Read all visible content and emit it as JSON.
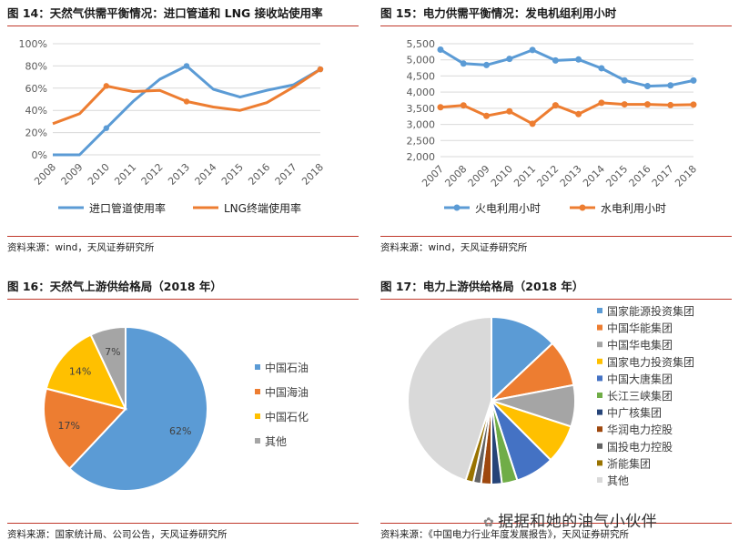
{
  "panels": {
    "fig14": {
      "title": "图 14：天然气供需平衡情况：进口管道和 LNG 接收站使用率",
      "source": "资料来源：wind，天风证券研究所"
    },
    "fig15": {
      "title": "图 15：电力供需平衡情况：发电机组利用小时",
      "source": "资料来源：wind，天风证券研究所"
    },
    "fig16": {
      "title": "图 16：天然气上游供给格局（2018 年）",
      "source": "资料来源：国家统计局、公司公告，天风证券研究所"
    },
    "fig17": {
      "title": "图 17：电力上游供给格局（2018 年）",
      "source": "资料来源：《中国电力行业年度发展报告》，天风证券研究所"
    }
  },
  "watermark": {
    "text": "据据和她的油气小伙伴",
    "icon": "wechat-icon"
  },
  "chart_data": [
    {
      "id": "fig14",
      "type": "line",
      "x": [
        "2008",
        "2009",
        "2010",
        "2011",
        "2012",
        "2013",
        "2014",
        "2015",
        "2016",
        "2017",
        "2018"
      ],
      "yticks": [
        "0%",
        "20%",
        "40%",
        "60%",
        "80%",
        "100%"
      ],
      "ylim": [
        0,
        100
      ],
      "series": [
        {
          "name": "进口管道使用率",
          "color": "#5b9bd5",
          "values": [
            0,
            0,
            24,
            48,
            68,
            80,
            59,
            52,
            58,
            63,
            77
          ]
        },
        {
          "name": "LNG终端使用率",
          "color": "#ed7d31",
          "values": [
            28,
            37,
            62,
            57,
            58,
            48,
            43,
            40,
            47,
            61,
            77
          ]
        }
      ],
      "grid": true
    },
    {
      "id": "fig15",
      "type": "line",
      "x": [
        "2007",
        "2008",
        "2009",
        "2010",
        "2011",
        "2012",
        "2013",
        "2014",
        "2015",
        "2016",
        "2017",
        "2018"
      ],
      "yticks": [
        "2,000",
        "2,500",
        "3,000",
        "3,500",
        "4,000",
        "4,500",
        "5,000",
        "5,500"
      ],
      "ylim": [
        2000,
        5500
      ],
      "series": [
        {
          "name": "火电利用小时",
          "color": "#5b9bd5",
          "values": [
            5316,
            4885,
            4839,
            5031,
            5305,
            4982,
            5012,
            4739,
            4364,
            4186,
            4209,
            4361
          ]
        },
        {
          "name": "水电利用小时",
          "color": "#ed7d31",
          "values": [
            3532,
            3589,
            3264,
            3404,
            3019,
            3591,
            3318,
            3669,
            3621,
            3619,
            3597,
            3613
          ]
        }
      ],
      "grid": true
    },
    {
      "id": "fig16",
      "type": "pie",
      "slices": [
        {
          "name": "中国石油",
          "value": 62,
          "label": "62%",
          "color": "#5b9bd5"
        },
        {
          "name": "中国海油",
          "value": 17,
          "label": "17%",
          "color": "#ed7d31"
        },
        {
          "name": "中国石化",
          "value": 14,
          "label": "14%",
          "color": "#ffc000"
        },
        {
          "name": "其他",
          "value": 7,
          "label": "7%",
          "color": "#a5a5a5"
        }
      ]
    },
    {
      "id": "fig17",
      "type": "pie",
      "slices": [
        {
          "name": "国家能源投资集团",
          "value": 13,
          "color": "#5b9bd5"
        },
        {
          "name": "中国华能集团",
          "value": 9,
          "color": "#ed7d31"
        },
        {
          "name": "中国华电集团",
          "value": 8,
          "color": "#a5a5a5"
        },
        {
          "name": "国家电力投资集团",
          "value": 7.5,
          "color": "#ffc000"
        },
        {
          "name": "中国大唐集团",
          "value": 7.5,
          "color": "#4472c4"
        },
        {
          "name": "长江三峡集团",
          "value": 3,
          "color": "#70ad47"
        },
        {
          "name": "中广核集团",
          "value": 2,
          "color": "#264478"
        },
        {
          "name": "华润电力控股",
          "value": 2,
          "color": "#9e480e"
        },
        {
          "name": "国投电力控股",
          "value": 1.5,
          "color": "#636363"
        },
        {
          "name": "浙能集团",
          "value": 1.5,
          "color": "#997300"
        },
        {
          "name": "其他",
          "value": 45,
          "color": "#d9d9d9"
        }
      ]
    }
  ]
}
